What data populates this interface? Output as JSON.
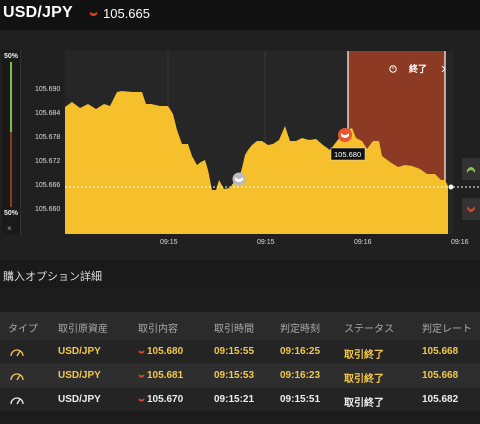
{
  "header": {
    "pair": "USD/JPY",
    "rate": "105.665"
  },
  "gauge": {
    "top_pct": "50%",
    "bottom_pct": "50%",
    "close": "×"
  },
  "chart_data": {
    "type": "area",
    "y_ticks": [
      "105.690",
      "105.684",
      "105.678",
      "105.672",
      "105.666",
      "105.660"
    ],
    "x_ticks": [
      "09:15",
      "09:15",
      "09:16",
      "09:16"
    ],
    "end_label": "終了",
    "entry_label": "105.680",
    "ylim": [
      105.6565,
      105.6965
    ],
    "colors": {
      "area": "#f6c02c",
      "expiry": "#8c3a24",
      "down": "#d2452c",
      "up": "#8bc34a"
    }
  },
  "section": {
    "title": "購入オプション詳細"
  },
  "table": {
    "headers": [
      "タイプ",
      "取引原資産",
      "取引内容",
      "取引時間",
      "判定時刻",
      "ステータス",
      "判定レート"
    ],
    "rows": [
      {
        "asset": "USD/JPY",
        "rate": "105.680",
        "time": "09:15:55",
        "judge": "09:16:25",
        "status": "取引終了",
        "result": "105.668"
      },
      {
        "asset": "USD/JPY",
        "rate": "105.681",
        "time": "09:15:53",
        "judge": "09:16:23",
        "status": "取引終了",
        "result": "105.668"
      },
      {
        "asset": "USD/JPY",
        "rate": "105.670",
        "time": "09:15:21",
        "judge": "09:15:51",
        "status": "取引終了",
        "result": "105.682"
      }
    ]
  }
}
